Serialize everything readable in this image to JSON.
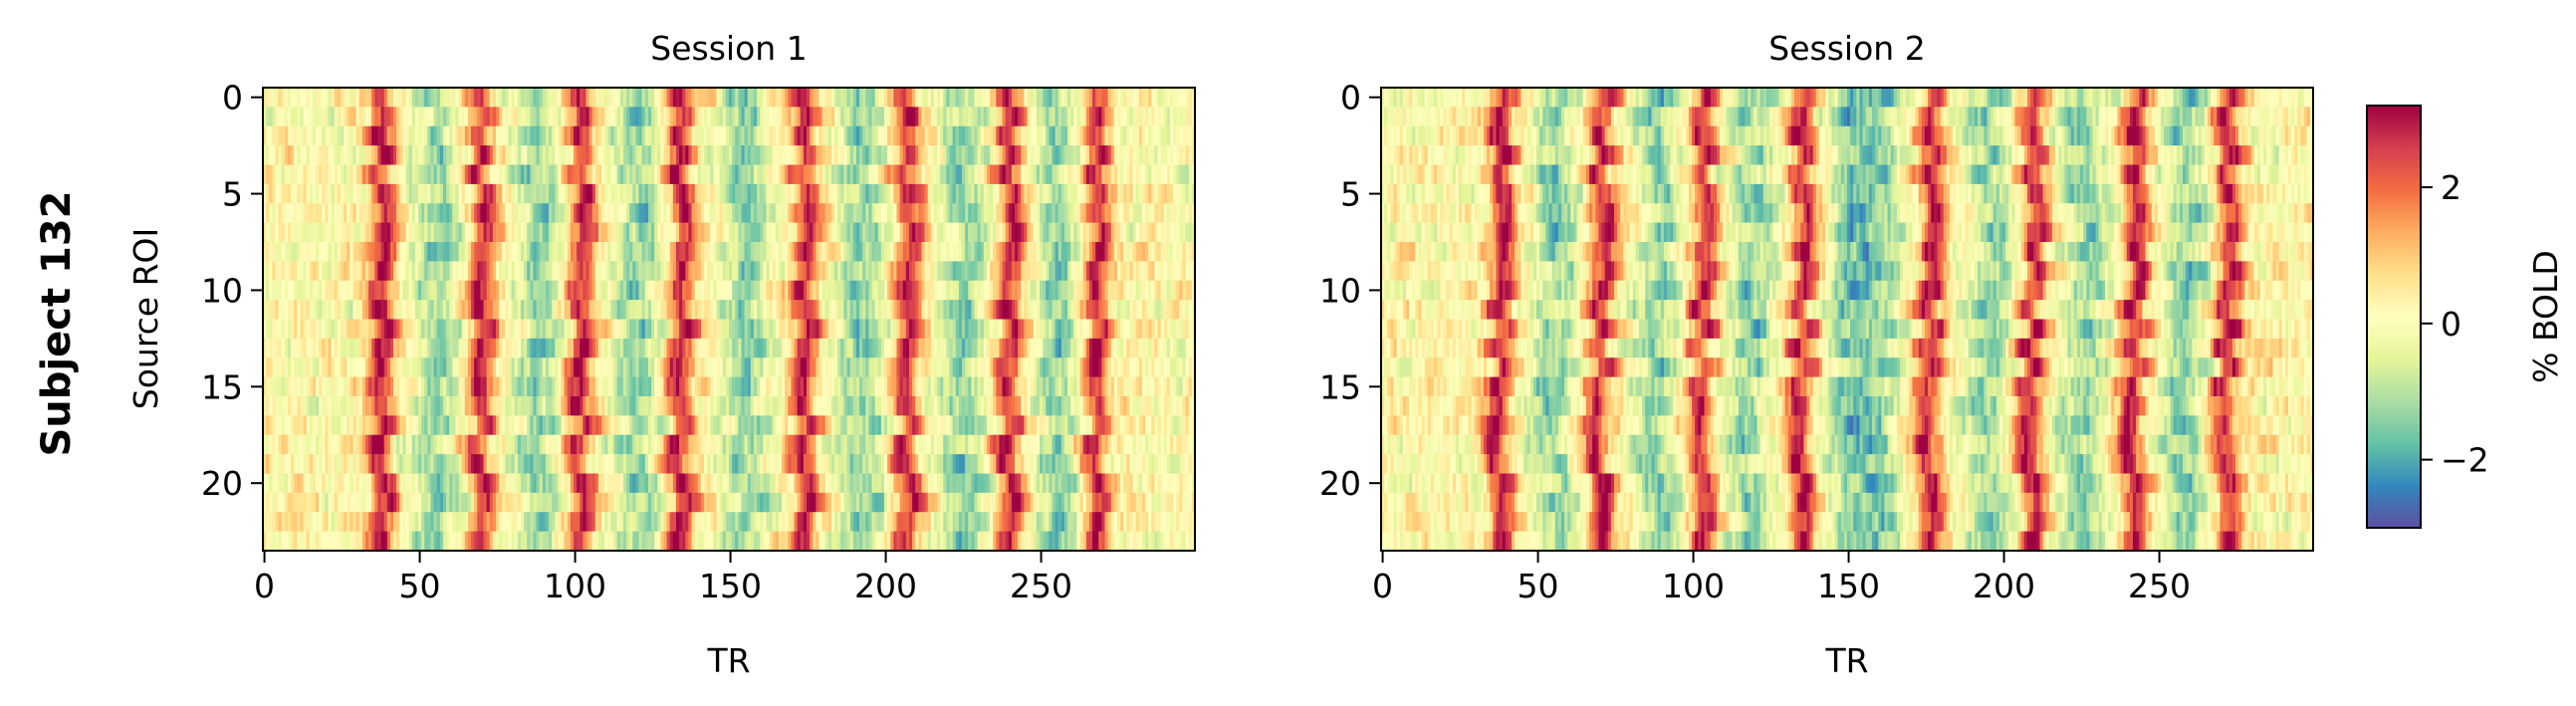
{
  "figure": {
    "row_label": "Subject 132"
  },
  "chart_data": [
    {
      "type": "heatmap",
      "title": "Session 1",
      "xlabel": "TR",
      "ylabel": "Source ROI",
      "x_range": [
        0,
        300
      ],
      "y_range": [
        0,
        24
      ],
      "n_rows": 24,
      "n_cols": 300,
      "x_ticks": [
        0,
        50,
        100,
        150,
        200,
        250
      ],
      "y_ticks": [
        0,
        5,
        10,
        15,
        20
      ],
      "peak_TRs": [
        38,
        70,
        102,
        134,
        174,
        207,
        240,
        268
      ],
      "trough_TRs": [
        55,
        88,
        120,
        155,
        192,
        225,
        255
      ],
      "colormap": "Spectral_r"
    },
    {
      "type": "heatmap",
      "title": "Session 2",
      "xlabel": "TR",
      "ylabel": "",
      "x_range": [
        0,
        300
      ],
      "y_range": [
        0,
        24
      ],
      "n_rows": 24,
      "n_cols": 300,
      "x_ticks": [
        0,
        50,
        100,
        150,
        200,
        250
      ],
      "y_ticks": [
        0,
        5,
        10,
        15,
        20
      ],
      "peak_TRs": [
        38,
        70,
        103,
        135,
        176,
        209,
        242,
        272
      ],
      "trough_TRs": [
        55,
        88,
        118,
        150,
        160,
        195,
        226,
        258
      ],
      "colormap": "Spectral_r"
    }
  ],
  "colorbar": {
    "label": "% BOLD",
    "range": [
      -3,
      3.2
    ],
    "ticks": [
      -2,
      0,
      2
    ],
    "tick_labels": [
      "−2",
      "0",
      "2"
    ],
    "colors": [
      "#5e4fa2",
      "#3288bd",
      "#66c2a5",
      "#abdda4",
      "#e6f598",
      "#ffffbf",
      "#fee08b",
      "#fdae61",
      "#f46d43",
      "#d53e4f",
      "#9e0142"
    ]
  }
}
